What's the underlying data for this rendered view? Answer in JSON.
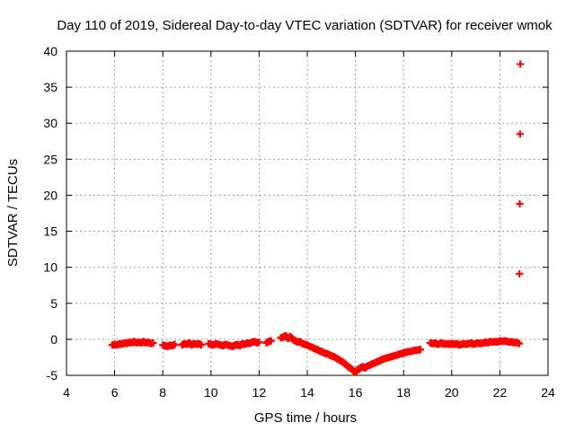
{
  "chart_data": {
    "type": "scatter",
    "title": "Day 110 of 2019, Sidereal Day-to-day VTEC variation (SDTVAR) for receiver wmok",
    "xlabel": "GPS time / hours",
    "ylabel": "SDTVAR / TECUs",
    "xlim": [
      4,
      24
    ],
    "ylim": [
      -5,
      40
    ],
    "xticks": [
      4,
      6,
      8,
      10,
      12,
      14,
      16,
      18,
      20,
      22,
      24
    ],
    "yticks": [
      -5,
      0,
      5,
      10,
      15,
      20,
      25,
      30,
      35,
      40
    ],
    "grid": true,
    "marker": "plus",
    "color": "#ff0000",
    "series": [
      {
        "name": "SDTVAR",
        "x": [
          5.9,
          6.0,
          6.1,
          6.2,
          6.3,
          6.4,
          6.5,
          6.6,
          6.7,
          6.8,
          6.9,
          7.0,
          7.1,
          7.2,
          7.3,
          7.4,
          7.5,
          7.6,
          8.0,
          8.1,
          8.2,
          8.3,
          8.4,
          8.5,
          8.8,
          8.9,
          9.0,
          9.1,
          9.2,
          9.3,
          9.4,
          9.5,
          9.6,
          9.9,
          10.0,
          10.1,
          10.2,
          10.3,
          10.4,
          10.5,
          10.6,
          10.7,
          10.8,
          10.9,
          11.0,
          11.1,
          11.2,
          11.3,
          11.4,
          11.5,
          11.6,
          11.7,
          11.8,
          11.9,
          12.0,
          12.3,
          12.4,
          12.5,
          12.9,
          13.0,
          13.1,
          13.2,
          13.3,
          13.4,
          13.5,
          13.6,
          13.7,
          13.8,
          13.9,
          14.0,
          14.1,
          14.2,
          14.3,
          14.4,
          14.5,
          14.6,
          14.7,
          14.8,
          14.9,
          15.0,
          15.1,
          15.2,
          15.3,
          15.4,
          15.5,
          15.6,
          15.7,
          15.8,
          15.9,
          16.0,
          16.1,
          16.2,
          16.3,
          16.4,
          16.5,
          16.6,
          16.7,
          16.8,
          16.9,
          17.0,
          17.1,
          17.2,
          17.3,
          17.4,
          17.5,
          17.6,
          17.7,
          17.8,
          17.9,
          18.0,
          18.1,
          18.2,
          18.3,
          18.4,
          18.5,
          18.6,
          18.7,
          19.1,
          19.2,
          19.3,
          19.4,
          19.5,
          19.6,
          19.7,
          19.8,
          19.9,
          20.0,
          20.1,
          20.2,
          20.3,
          20.4,
          20.5,
          20.6,
          20.7,
          20.8,
          20.9,
          21.0,
          21.1,
          21.2,
          21.3,
          21.4,
          21.5,
          21.6,
          21.7,
          21.8,
          21.9,
          22.0,
          22.1,
          22.2,
          22.3,
          22.4,
          22.5,
          22.6,
          22.7,
          22.8,
          22.85
        ],
        "y": [
          -0.8,
          -0.7,
          -0.8,
          -0.6,
          -0.7,
          -0.5,
          -0.6,
          -0.4,
          -0.5,
          -0.3,
          -0.5,
          -0.4,
          -0.5,
          -0.3,
          -0.5,
          -0.4,
          -0.6,
          -0.5,
          -0.8,
          -0.9,
          -1.0,
          -0.8,
          -0.9,
          -0.7,
          -0.8,
          -0.6,
          -0.7,
          -0.5,
          -0.8,
          -0.6,
          -0.7,
          -0.6,
          -0.8,
          -0.6,
          -0.7,
          -0.8,
          -0.6,
          -0.7,
          -0.8,
          -0.9,
          -0.7,
          -0.8,
          -0.9,
          -1.0,
          -0.8,
          -0.7,
          -0.9,
          -0.6,
          -0.7,
          -0.5,
          -0.6,
          -0.4,
          -0.3,
          -0.5,
          -0.4,
          -0.5,
          -0.3,
          -0.2,
          0.2,
          0.3,
          0.5,
          0.1,
          0.4,
          0.0,
          -0.2,
          -0.4,
          -0.3,
          -0.6,
          -0.7,
          -0.8,
          -1.0,
          -1.1,
          -1.3,
          -1.4,
          -1.6,
          -1.7,
          -1.9,
          -2.0,
          -2.1,
          -2.3,
          -2.4,
          -2.6,
          -2.8,
          -3.0,
          -3.2,
          -3.5,
          -3.8,
          -4.0,
          -4.3,
          -4.6,
          -4.2,
          -4.0,
          -3.8,
          -4.0,
          -3.7,
          -3.6,
          -3.4,
          -3.3,
          -3.1,
          -3.0,
          -2.8,
          -2.7,
          -2.6,
          -2.5,
          -2.4,
          -2.3,
          -2.2,
          -2.1,
          -2.0,
          -1.9,
          -1.8,
          -1.7,
          -1.7,
          -1.6,
          -1.5,
          -1.5,
          -1.4,
          -0.5,
          -0.6,
          -0.5,
          -0.7,
          -0.6,
          -0.5,
          -0.7,
          -0.6,
          -0.7,
          -0.6,
          -0.7,
          -0.6,
          -0.8,
          -0.7,
          -0.6,
          -0.7,
          -0.6,
          -0.5,
          -0.7,
          -0.6,
          -0.5,
          -0.6,
          -0.5,
          -0.4,
          -0.5,
          -0.3,
          -0.4,
          -0.3,
          -0.4,
          -0.2,
          -0.3,
          -0.2,
          -0.3,
          -0.4,
          -0.3,
          -0.5,
          -0.4,
          -0.6,
          38.2
        ]
      }
    ]
  }
}
